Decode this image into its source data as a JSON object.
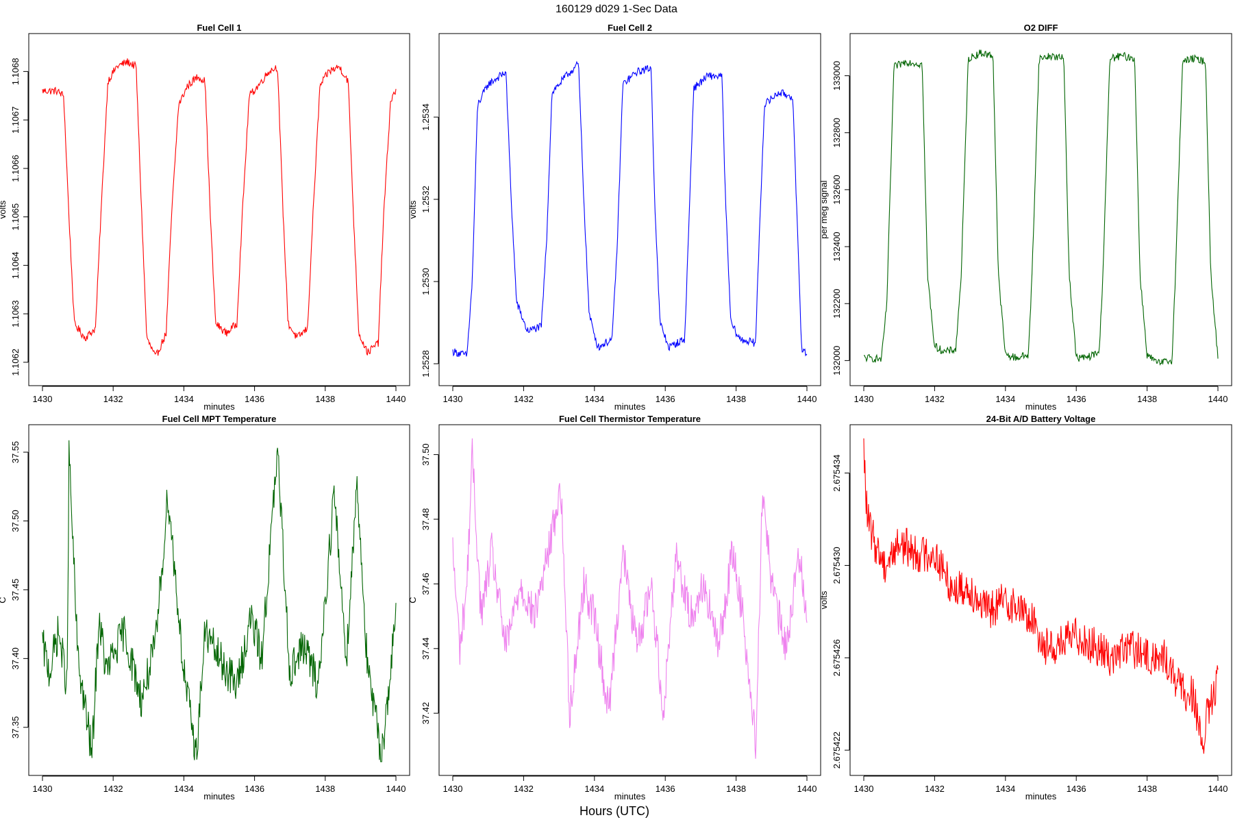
{
  "figure": {
    "title": "160129   d029   1-Sec Data",
    "footer_label": "Hours (UTC)"
  },
  "chart_data": [
    {
      "type": "line",
      "title": "Fuel Cell 1",
      "xlabel": "minutes",
      "ylabel": "volts",
      "color": "#ff0000",
      "xlim": [
        1430,
        1440
      ],
      "ylim": [
        1.10618,
        1.10685
      ],
      "x_ticks": [
        1430,
        1432,
        1434,
        1436,
        1438,
        1440
      ],
      "y_ticks": [
        1.1062,
        1.1063,
        1.1064,
        1.1065,
        1.1066,
        1.1067,
        1.1068
      ],
      "y_tick_labels": [
        "1.1062",
        "1.1063",
        "1.1064",
        "1.1065",
        "1.1066",
        "1.1067",
        "1.1068"
      ],
      "series": [
        {
          "name": "Fuel Cell 1",
          "x": [
            1430.0,
            1430.4,
            1430.6,
            1430.75,
            1430.9,
            1431.2,
            1431.5,
            1431.65,
            1431.85,
            1432.1,
            1432.4,
            1432.65,
            1432.8,
            1432.95,
            1433.2,
            1433.5,
            1433.65,
            1433.85,
            1434.1,
            1434.4,
            1434.6,
            1434.75,
            1434.9,
            1435.2,
            1435.5,
            1435.65,
            1435.85,
            1436.1,
            1436.4,
            1436.65,
            1436.8,
            1436.95,
            1437.2,
            1437.5,
            1437.65,
            1437.85,
            1438.1,
            1438.4,
            1438.65,
            1438.8,
            1438.95,
            1439.2,
            1439.5,
            1439.65,
            1439.85,
            1440.0
          ],
          "y": [
            1.10676,
            1.10676,
            1.10675,
            1.1065,
            1.10628,
            1.10625,
            1.10627,
            1.1065,
            1.10678,
            1.10681,
            1.10682,
            1.10681,
            1.10652,
            1.10625,
            1.10621,
            1.10626,
            1.1065,
            1.10673,
            1.10677,
            1.10679,
            1.10678,
            1.1065,
            1.10628,
            1.10626,
            1.10628,
            1.1065,
            1.10675,
            1.10677,
            1.1068,
            1.10681,
            1.10652,
            1.10628,
            1.10625,
            1.10627,
            1.1065,
            1.10677,
            1.1068,
            1.10681,
            1.10678,
            1.1065,
            1.10626,
            1.10622,
            1.10624,
            1.1065,
            1.10674,
            1.10676
          ]
        }
      ]
    },
    {
      "type": "line",
      "title": "Fuel Cell 2",
      "xlabel": "minutes",
      "ylabel": "volts",
      "color": "#0000ff",
      "xlim": [
        1430,
        1440
      ],
      "ylim": [
        1.25278,
        1.25357
      ],
      "x_ticks": [
        1430,
        1432,
        1434,
        1436,
        1438,
        1440
      ],
      "y_ticks": [
        1.2528,
        1.253,
        1.2532,
        1.2534
      ],
      "y_tick_labels": [
        "1.2528",
        "1.2530",
        "1.2532",
        "1.2534"
      ],
      "series": [
        {
          "name": "Fuel Cell 2",
          "x": [
            1430.0,
            1430.4,
            1430.55,
            1430.7,
            1431.0,
            1431.5,
            1431.65,
            1431.8,
            1432.1,
            1432.5,
            1432.65,
            1432.8,
            1433.2,
            1433.55,
            1433.7,
            1433.85,
            1434.1,
            1434.5,
            1434.65,
            1434.8,
            1435.2,
            1435.6,
            1435.7,
            1435.85,
            1436.1,
            1436.55,
            1436.65,
            1436.8,
            1437.2,
            1437.6,
            1437.7,
            1437.85,
            1438.1,
            1438.55,
            1438.65,
            1438.8,
            1439.2,
            1439.6,
            1439.7,
            1439.85,
            1440.0
          ],
          "y": [
            1.25283,
            1.25282,
            1.253,
            1.25343,
            1.25348,
            1.25351,
            1.2532,
            1.25295,
            1.25288,
            1.25289,
            1.2531,
            1.25346,
            1.2535,
            1.25353,
            1.2532,
            1.25292,
            1.25284,
            1.25286,
            1.2531,
            1.25348,
            1.25351,
            1.25352,
            1.2532,
            1.2529,
            1.25284,
            1.25286,
            1.2531,
            1.25347,
            1.2535,
            1.2535,
            1.2532,
            1.2529,
            1.25286,
            1.25285,
            1.2531,
            1.25343,
            1.25346,
            1.25345,
            1.2532,
            1.25284,
            1.25282
          ]
        }
      ]
    },
    {
      "type": "line",
      "title": "O2 DIFF",
      "xlabel": "minutes",
      "ylabel": "per meg signal",
      "color": "#006400",
      "xlim": [
        1430,
        1440
      ],
      "ylim": [
        131960,
        133100
      ],
      "x_ticks": [
        1430,
        1432,
        1434,
        1436,
        1438,
        1440
      ],
      "y_ticks": [
        132000,
        132200,
        132400,
        132600,
        132800,
        133000
      ],
      "y_tick_labels": [
        "132000",
        "132200",
        "132400",
        "132600",
        "132800",
        "133000"
      ],
      "series": [
        {
          "name": "O2 DIFF",
          "x": [
            1430.0,
            1430.5,
            1430.65,
            1430.85,
            1431.2,
            1431.65,
            1431.8,
            1432.0,
            1432.3,
            1432.6,
            1432.75,
            1432.95,
            1433.3,
            1433.65,
            1433.8,
            1434.0,
            1434.3,
            1434.65,
            1434.75,
            1434.95,
            1435.3,
            1435.65,
            1435.8,
            1436.0,
            1436.3,
            1436.65,
            1436.75,
            1436.95,
            1437.3,
            1437.65,
            1437.8,
            1438.0,
            1438.3,
            1438.7,
            1438.8,
            1439.0,
            1439.3,
            1439.65,
            1439.8,
            1440.0
          ],
          "y": [
            132010,
            132005,
            132200,
            133030,
            133050,
            133040,
            132300,
            132050,
            132030,
            132040,
            132300,
            133060,
            133080,
            133070,
            132300,
            132020,
            132010,
            132020,
            132300,
            133060,
            133070,
            133060,
            132300,
            132010,
            132010,
            132030,
            132300,
            133060,
            133070,
            133060,
            132300,
            132020,
            131990,
            132000,
            132300,
            133050,
            133060,
            133050,
            132300,
            132010
          ]
        }
      ]
    },
    {
      "type": "line",
      "title": "Fuel Cell MPT Temperature",
      "xlabel": "minutes",
      "ylabel": "C",
      "color": "#006400",
      "xlim": [
        1430,
        1440
      ],
      "ylim": [
        37.325,
        37.56
      ],
      "x_ticks": [
        1430,
        1432,
        1434,
        1436,
        1438,
        1440
      ],
      "y_ticks": [
        37.35,
        37.4,
        37.45,
        37.5,
        37.55
      ],
      "y_tick_labels": [
        "37.35",
        "37.40",
        "37.45",
        "37.50",
        "37.55"
      ],
      "series": [
        {
          "name": "Fuel Cell MPT Temperature",
          "x": [
            1430.0,
            1430.2,
            1430.45,
            1430.7,
            1430.75,
            1431.0,
            1431.4,
            1431.6,
            1431.8,
            1432.3,
            1432.8,
            1433.2,
            1433.55,
            1434.0,
            1434.35,
            1434.6,
            1435.0,
            1435.5,
            1435.9,
            1436.2,
            1436.65,
            1437.0,
            1437.4,
            1437.8,
            1438.25,
            1438.6,
            1438.9,
            1439.2,
            1439.6,
            1440.0
          ],
          "y": [
            37.41,
            37.39,
            37.42,
            37.38,
            37.55,
            37.4,
            37.33,
            37.43,
            37.39,
            37.42,
            37.37,
            37.41,
            37.52,
            37.39,
            37.33,
            37.42,
            37.4,
            37.38,
            37.43,
            37.4,
            37.55,
            37.39,
            37.41,
            37.38,
            37.52,
            37.4,
            37.53,
            37.39,
            37.33,
            37.43
          ]
        }
      ]
    },
    {
      "type": "line",
      "title": "Fuel Cell Thermistor Temperature",
      "xlabel": "minutes",
      "ylabel": "C",
      "color": "#ee82ee",
      "xlim": [
        1430,
        1440
      ],
      "ylim": [
        37.405,
        37.505
      ],
      "x_ticks": [
        1430,
        1432,
        1434,
        1436,
        1438,
        1440
      ],
      "y_ticks": [
        37.42,
        37.44,
        37.46,
        37.48,
        37.5
      ],
      "y_tick_labels": [
        "37.42",
        "37.44",
        "37.46",
        "37.48",
        "37.50"
      ],
      "series": [
        {
          "name": "Fuel Cell Thermistor Temperature",
          "x": [
            1430.0,
            1430.2,
            1430.4,
            1430.55,
            1430.8,
            1431.1,
            1431.5,
            1431.9,
            1432.3,
            1432.7,
            1433.05,
            1433.3,
            1433.7,
            1434.0,
            1434.4,
            1434.8,
            1435.2,
            1435.6,
            1435.95,
            1436.3,
            1436.7,
            1437.1,
            1437.5,
            1437.9,
            1438.2,
            1438.55,
            1438.75,
            1439.0,
            1439.4,
            1439.8,
            1440.0
          ],
          "y": [
            37.47,
            37.44,
            37.46,
            37.5,
            37.45,
            37.47,
            37.44,
            37.46,
            37.45,
            37.47,
            37.49,
            37.42,
            37.46,
            37.45,
            37.42,
            37.47,
            37.44,
            37.46,
            37.42,
            37.47,
            37.45,
            37.46,
            37.44,
            37.47,
            37.45,
            37.41,
            37.49,
            37.46,
            37.44,
            37.47,
            37.45
          ]
        }
      ]
    },
    {
      "type": "line",
      "title": "24-Bit A/D Battery Voltage",
      "xlabel": "minutes",
      "ylabel": "volts",
      "color": "#ff0000",
      "xlim": [
        1430,
        1440
      ],
      "ylim": [
        2.6754215,
        2.6754355
      ],
      "x_ticks": [
        1430,
        1432,
        1434,
        1436,
        1438,
        1440
      ],
      "y_ticks": [
        2.675422,
        2.675426,
        2.67543,
        2.675434
      ],
      "y_tick_labels": [
        "2.675422",
        "2.675426",
        "2.675430",
        "2.675434"
      ],
      "series": [
        {
          "name": "24-Bit A/D Battery Voltage",
          "x": [
            1430.0,
            1430.1,
            1430.3,
            1430.6,
            1431.0,
            1431.5,
            1432.0,
            1432.5,
            1433.0,
            1433.5,
            1434.0,
            1434.5,
            1434.8,
            1435.1,
            1435.5,
            1436.0,
            1436.5,
            1437.0,
            1437.5,
            1438.0,
            1438.5,
            1439.0,
            1439.3,
            1439.55,
            1439.7,
            1440.0
          ],
          "y": [
            2.675435,
            2.675432,
            2.675431,
            2.67543,
            2.675431,
            2.6754305,
            2.6754305,
            2.675429,
            2.675429,
            2.675428,
            2.6754285,
            2.675428,
            2.6754275,
            2.6754265,
            2.6754265,
            2.675427,
            2.6754265,
            2.675426,
            2.6754265,
            2.675426,
            2.675426,
            2.6754245,
            2.6754245,
            2.675422,
            2.6754235,
            2.675425
          ]
        }
      ]
    }
  ]
}
